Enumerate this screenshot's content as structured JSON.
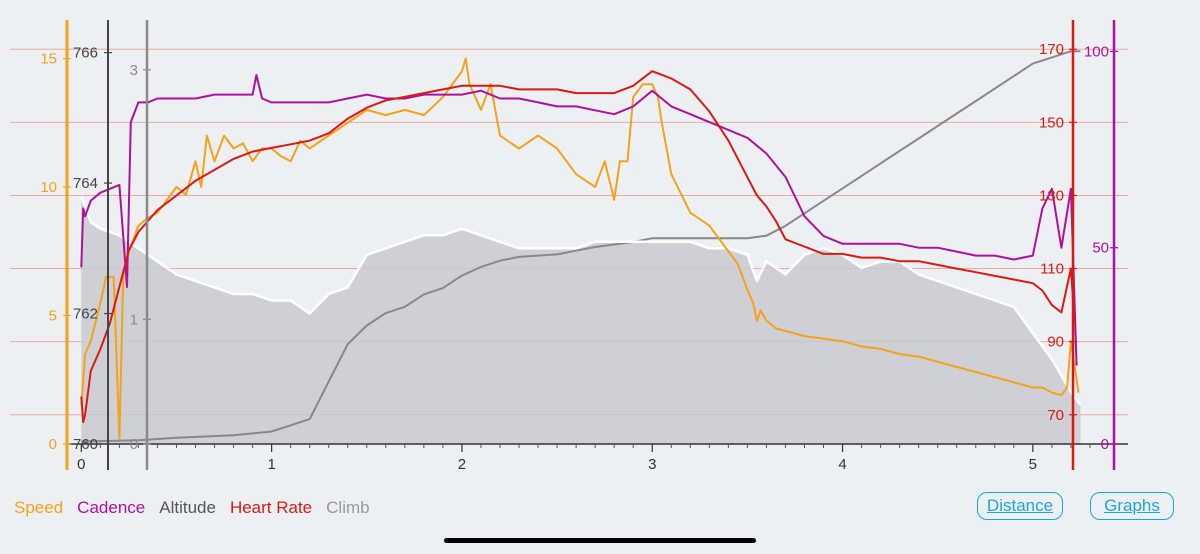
{
  "chart_data": {
    "type": "line",
    "xlabel": "",
    "xlim": [
      -0.07,
      5.5
    ],
    "x_ticks": [
      "0",
      "1",
      "2",
      "3",
      "4",
      "5"
    ],
    "grid": "horizontal lines at heart-rate ticks",
    "axes": {
      "speed": {
        "color": "#f5a11a",
        "range": [
          0,
          16.5
        ],
        "ticks": [
          "15",
          "10",
          "5",
          "0"
        ]
      },
      "altitude": {
        "color": "#555555",
        "range": [
          760,
          766.5
        ],
        "ticks": [
          "766",
          "764",
          "762",
          "760"
        ]
      },
      "climb": {
        "color": "#888888",
        "range": [
          0,
          3.4
        ],
        "ticks": [
          "3",
          "1",
          "0"
        ]
      },
      "heart_rate": {
        "color": "#d91a12",
        "range": [
          62,
          178
        ],
        "ticks": [
          "170",
          "150",
          "130",
          "110",
          "90",
          "70"
        ]
      },
      "cadence": {
        "color": "#b0109e",
        "range": [
          0,
          108
        ],
        "ticks": [
          "100",
          "50",
          "0"
        ]
      }
    },
    "series": [
      {
        "name": "Speed",
        "color": "#f5a11a",
        "x": [
          0,
          0.02,
          0.05,
          0.1,
          0.13,
          0.17,
          0.2,
          0.22,
          0.25,
          0.3,
          0.35,
          0.4,
          0.45,
          0.5,
          0.55,
          0.6,
          0.63,
          0.66,
          0.7,
          0.75,
          0.8,
          0.85,
          0.9,
          0.95,
          1,
          1.05,
          1.1,
          1.15,
          1.2,
          1.3,
          1.4,
          1.5,
          1.6,
          1.7,
          1.8,
          1.9,
          2.0,
          2.02,
          2.04,
          2.1,
          2.15,
          2.2,
          2.3,
          2.4,
          2.5,
          2.6,
          2.7,
          2.75,
          2.8,
          2.83,
          2.87,
          2.9,
          2.95,
          3.0,
          3.03,
          3.05,
          3.1,
          3.2,
          3.3,
          3.4,
          3.45,
          3.5,
          3.53,
          3.55,
          3.57,
          3.6,
          3.65,
          3.7,
          3.8,
          3.9,
          4.0,
          4.1,
          4.2,
          4.3,
          4.4,
          4.5,
          4.6,
          4.7,
          4.8,
          4.9,
          5.0,
          5.05,
          5.1,
          5.15,
          5.18,
          5.2,
          5.22,
          5.24
        ],
        "values": [
          1.5,
          3.5,
          4,
          5.5,
          6.5,
          6.5,
          0.2,
          6.5,
          7.5,
          8.5,
          8.8,
          9,
          9.5,
          10,
          9.7,
          11,
          10,
          12,
          11,
          12,
          11.5,
          11.7,
          11,
          11.5,
          11.5,
          11.2,
          11,
          11.8,
          11.5,
          12,
          12.5,
          13,
          12.8,
          13,
          12.8,
          13.5,
          14.5,
          15,
          14,
          13,
          14,
          12,
          11.5,
          12,
          11.5,
          10.5,
          10,
          11,
          9.5,
          11,
          11,
          13.5,
          14,
          14,
          13.5,
          12.5,
          10.5,
          9,
          8.5,
          7.5,
          7,
          6,
          5.5,
          4.8,
          5.2,
          4.8,
          4.5,
          4.4,
          4.2,
          4.1,
          4,
          3.8,
          3.7,
          3.5,
          3.4,
          3.2,
          3,
          2.8,
          2.6,
          2.4,
          2.2,
          2.2,
          2,
          1.9,
          2.2,
          4,
          3,
          2
        ]
      },
      {
        "name": "Cadence",
        "color": "#b0109e",
        "x": [
          0,
          0.01,
          0.02,
          0.05,
          0.1,
          0.15,
          0.2,
          0.24,
          0.26,
          0.3,
          0.35,
          0.4,
          0.5,
          0.6,
          0.7,
          0.8,
          0.9,
          0.92,
          0.95,
          1.0,
          1.1,
          1.2,
          1.3,
          1.4,
          1.5,
          1.6,
          1.7,
          1.8,
          1.9,
          2.0,
          2.1,
          2.2,
          2.3,
          2.4,
          2.5,
          2.6,
          2.7,
          2.8,
          2.9,
          3.0,
          3.1,
          3.2,
          3.3,
          3.4,
          3.5,
          3.6,
          3.7,
          3.8,
          3.9,
          4.0,
          4.1,
          4.2,
          4.3,
          4.4,
          4.5,
          4.6,
          4.7,
          4.8,
          4.9,
          5.0,
          5.05,
          5.1,
          5.15,
          5.2,
          5.23
        ],
        "values": [
          45,
          60,
          58,
          62,
          64,
          65,
          66,
          40,
          82,
          87,
          87,
          88,
          88,
          88,
          89,
          89,
          89,
          94,
          88,
          87,
          87,
          87,
          87,
          88,
          89,
          88,
          88,
          89,
          89,
          89,
          90,
          88,
          88,
          87,
          86,
          86,
          85,
          84,
          86,
          90,
          86,
          84,
          82,
          80,
          78,
          74,
          68,
          58,
          53,
          51,
          51,
          51,
          51,
          50,
          50,
          49,
          48,
          48,
          47,
          48,
          60,
          65,
          50,
          65,
          20
        ]
      },
      {
        "name": "Altitude",
        "color": "#ffffff",
        "x": [
          0,
          0.05,
          0.1,
          0.2,
          0.3,
          0.4,
          0.5,
          0.6,
          0.7,
          0.8,
          0.9,
          1.0,
          1.1,
          1.2,
          1.3,
          1.4,
          1.5,
          1.6,
          1.7,
          1.8,
          1.9,
          2.0,
          2.1,
          2.2,
          2.3,
          2.4,
          2.5,
          2.6,
          2.7,
          2.8,
          2.9,
          3.0,
          3.1,
          3.2,
          3.3,
          3.4,
          3.5,
          3.55,
          3.6,
          3.7,
          3.8,
          3.9,
          4.0,
          4.1,
          4.2,
          4.3,
          4.4,
          4.5,
          4.6,
          4.7,
          4.8,
          4.9,
          5.0,
          5.1,
          5.2,
          5.25
        ],
        "values": [
          763.8,
          763.4,
          763.3,
          763.2,
          763.0,
          762.8,
          762.6,
          762.5,
          762.4,
          762.3,
          762.3,
          762.2,
          762.2,
          762.0,
          762.3,
          762.4,
          762.9,
          763.0,
          763.1,
          763.2,
          763.2,
          763.3,
          763.2,
          763.1,
          763.0,
          763.0,
          763.0,
          763.0,
          763.1,
          763.1,
          763.1,
          763.1,
          763.1,
          763.1,
          763.0,
          763.0,
          762.9,
          762.5,
          762.8,
          762.6,
          762.9,
          763.0,
          762.9,
          762.7,
          762.8,
          762.8,
          762.6,
          762.5,
          762.4,
          762.3,
          762.2,
          762.1,
          761.7,
          761.3,
          760.8,
          760.6
        ]
      },
      {
        "name": "Heart Rate",
        "color": "#d91a12",
        "x": [
          0,
          0.01,
          0.02,
          0.05,
          0.1,
          0.15,
          0.2,
          0.25,
          0.3,
          0.35,
          0.4,
          0.5,
          0.6,
          0.7,
          0.8,
          0.9,
          1.0,
          1.1,
          1.2,
          1.3,
          1.4,
          1.5,
          1.6,
          1.7,
          1.8,
          1.9,
          2.0,
          2.1,
          2.2,
          2.3,
          2.4,
          2.5,
          2.6,
          2.7,
          2.8,
          2.9,
          3.0,
          3.05,
          3.1,
          3.2,
          3.3,
          3.4,
          3.5,
          3.55,
          3.6,
          3.65,
          3.7,
          3.75,
          3.8,
          3.85,
          3.9,
          4.0,
          4.1,
          4.2,
          4.3,
          4.4,
          4.5,
          4.6,
          4.7,
          4.8,
          4.9,
          5.0,
          5.05,
          5.1,
          5.15,
          5.2,
          5.22
        ],
        "values": [
          75,
          68,
          70,
          82,
          88,
          95,
          105,
          115,
          120,
          123,
          126,
          130,
          134,
          137,
          140,
          142,
          143,
          144,
          145,
          147,
          151,
          154,
          156,
          157,
          158,
          159,
          160,
          160,
          160,
          159,
          159,
          159,
          158,
          158,
          158,
          160,
          164,
          163,
          162,
          159,
          153,
          145,
          135,
          130,
          127,
          123,
          118,
          117,
          116,
          115,
          114,
          114,
          113,
          113,
          112,
          112,
          111,
          110,
          109,
          108,
          107,
          106,
          104,
          100,
          98,
          110,
          95
        ]
      },
      {
        "name": "Climb",
        "color": "#888888",
        "x": [
          0,
          0.3,
          0.5,
          0.8,
          1.0,
          1.1,
          1.2,
          1.3,
          1.4,
          1.5,
          1.6,
          1.7,
          1.8,
          1.9,
          2.0,
          2.1,
          2.2,
          2.3,
          2.5,
          2.6,
          2.7,
          2.8,
          2.9,
          3.0,
          3.2,
          3.4,
          3.5,
          3.6,
          3.7,
          3.8,
          3.9,
          4.0,
          4.1,
          4.2,
          4.3,
          4.4,
          4.5,
          4.6,
          4.7,
          4.8,
          4.9,
          5.0,
          5.1,
          5.2,
          5.25
        ],
        "values": [
          0.02,
          0.03,
          0.05,
          0.07,
          0.1,
          0.15,
          0.2,
          0.5,
          0.8,
          0.95,
          1.05,
          1.1,
          1.2,
          1.25,
          1.35,
          1.42,
          1.47,
          1.5,
          1.52,
          1.55,
          1.58,
          1.6,
          1.62,
          1.65,
          1.65,
          1.65,
          1.65,
          1.67,
          1.75,
          1.85,
          1.95,
          2.05,
          2.15,
          2.25,
          2.35,
          2.45,
          2.55,
          2.65,
          2.75,
          2.85,
          2.95,
          3.05,
          3.1,
          3.15,
          3.15
        ]
      }
    ]
  },
  "legend": {
    "speed": "Speed",
    "cadence": "Cadence",
    "altitude": "Altitude",
    "heart_rate": "Heart Rate",
    "climb": "Climb"
  },
  "buttons": {
    "distance": "Distance",
    "graphs": "Graphs"
  }
}
